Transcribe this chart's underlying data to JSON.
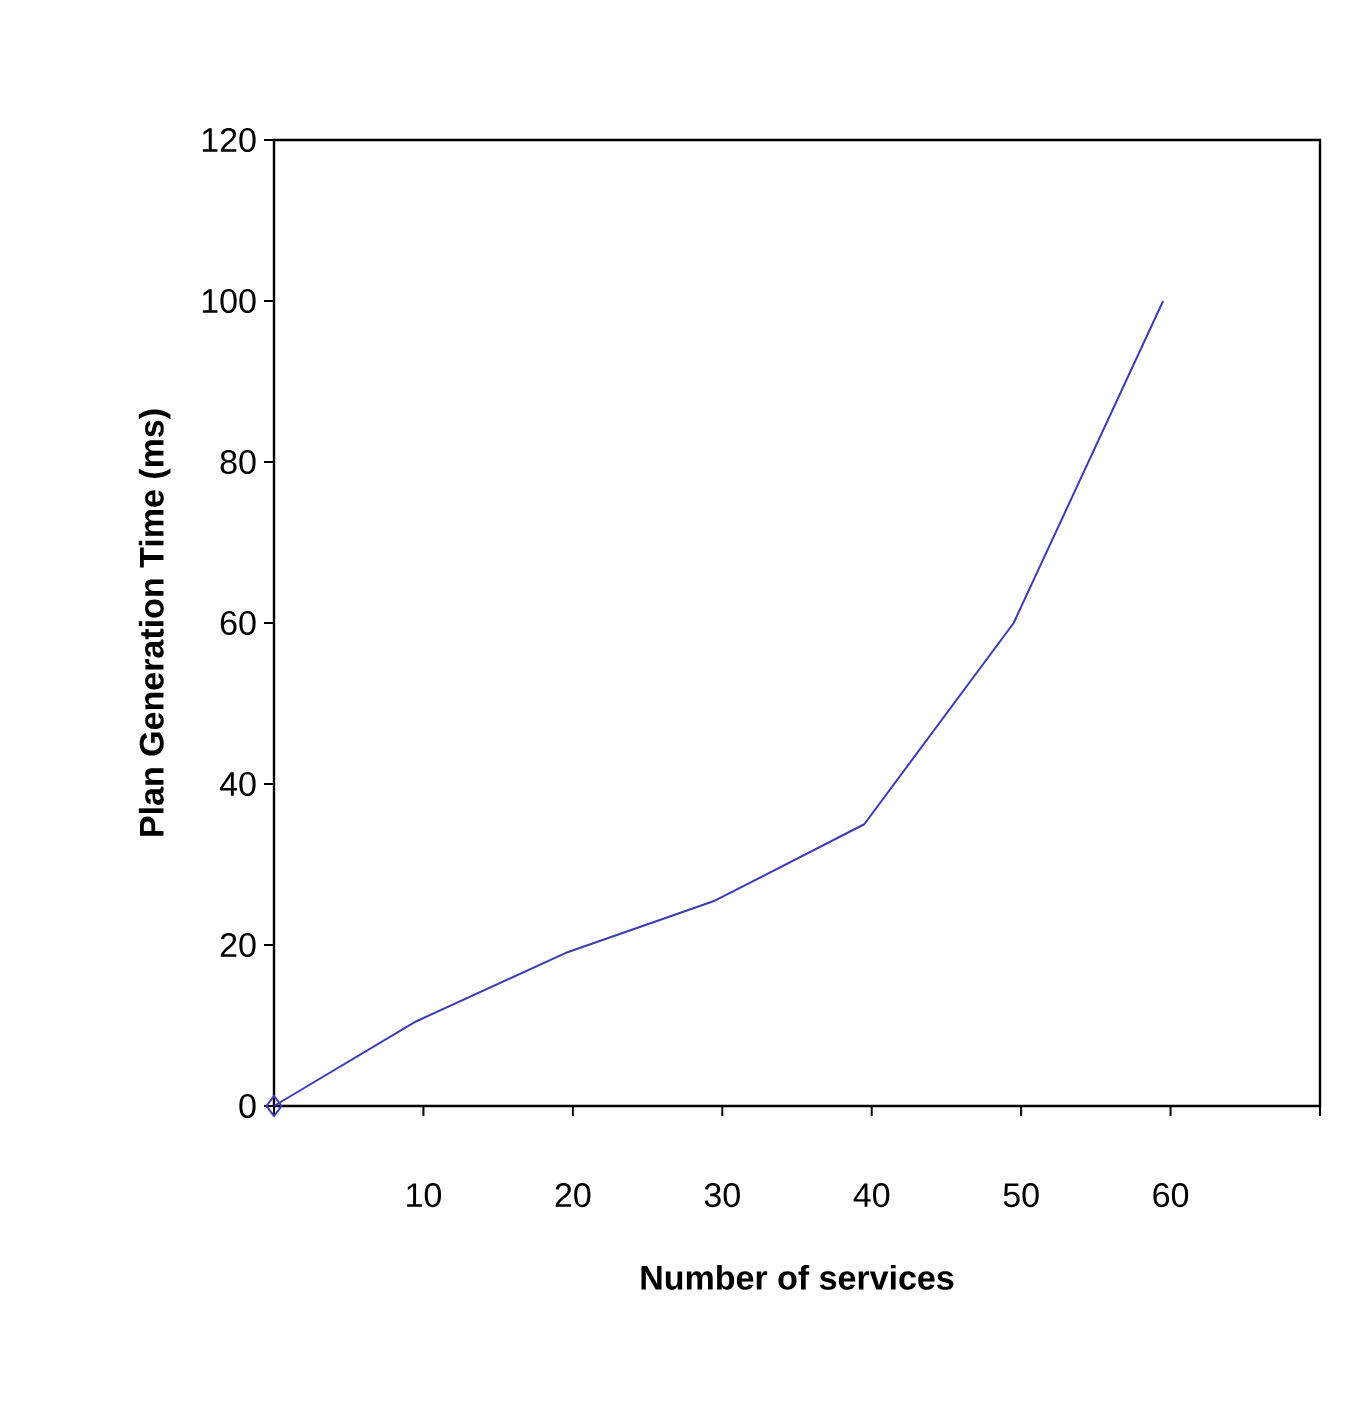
{
  "chart_data": {
    "type": "line",
    "xlabel": "Number of services",
    "ylabel": "Plan Generation Time (ms)",
    "xlim": [
      0,
      70
    ],
    "xticks": [
      {
        "value": 0,
        "label": null
      },
      10,
      20,
      30,
      40,
      50,
      60,
      {
        "value": 70,
        "label": null
      }
    ],
    "ylim": [
      0,
      120
    ],
    "yticks": [
      0,
      20,
      40,
      60,
      80,
      100,
      120
    ],
    "series": [
      {
        "color": "#3c3cb4",
        "x": [
          0,
          9.5,
          19.5,
          29.5,
          39.5,
          49.5,
          59.5
        ],
        "values": [
          0,
          10.5,
          19,
          25.5,
          35,
          60,
          100
        ],
        "marker": "none"
      },
      {
        "type": "scatter",
        "color": "#3c3cb4",
        "x": [
          0
        ],
        "values": [
          0
        ],
        "marker": "diamond"
      }
    ]
  }
}
